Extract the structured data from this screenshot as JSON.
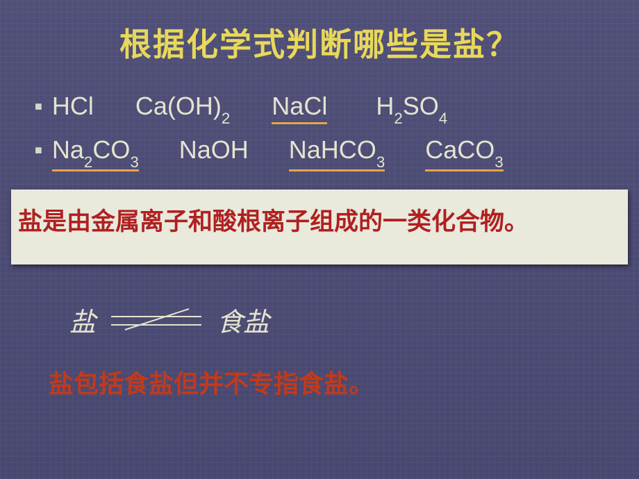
{
  "slide": {
    "title": "根据化学式判断哪些是盐？",
    "title_color": "#e8d85a",
    "background_color": "#4a4a70",
    "bullet_text_color": "#e4e4d0",
    "underline_color": "#e6a64a"
  },
  "formulas": {
    "row1": {
      "f1": {
        "base": "HCl",
        "sub": "",
        "underline": false,
        "gap_after": 60
      },
      "f2": {
        "base": "Ca(OH)",
        "sub": "2",
        "underline": false,
        "gap_after": 60
      },
      "f3": {
        "base": "NaCl",
        "sub": "",
        "underline": true,
        "gap_after": 70
      },
      "f4a": {
        "base": "H",
        "sub": "2",
        "underline": false,
        "gap_after": 0
      },
      "f4b": {
        "base": "SO",
        "sub": "4",
        "underline": false,
        "gap_after": 0
      }
    },
    "row2": {
      "f1a": {
        "base": "Na",
        "sub": "2",
        "underline": true,
        "gap_after": 0
      },
      "f1b": {
        "base": "CO",
        "sub": "3",
        "underline": true,
        "gap_after": 58
      },
      "f2": {
        "base": "NaOH",
        "sub": "",
        "underline": false,
        "gap_after": 58
      },
      "f3a": {
        "base": "NaHCO",
        "sub": "3",
        "underline": true,
        "gap_after": 58
      },
      "f4a": {
        "base": "CaCO",
        "sub": "3",
        "underline": true,
        "gap_after": 0
      }
    }
  },
  "definition": {
    "text": "盐是由金属离子和酸根离子组成的一类化合物。",
    "bg_color": "#e9e9dc",
    "text_color": "#b02020"
  },
  "equation": {
    "left": "盐",
    "right": "食盐",
    "neq_line_angle_deg": 22
  },
  "conclusion": {
    "text": "盐包括食盐但并不专指食盐。",
    "text_color": "#c23a1a"
  }
}
